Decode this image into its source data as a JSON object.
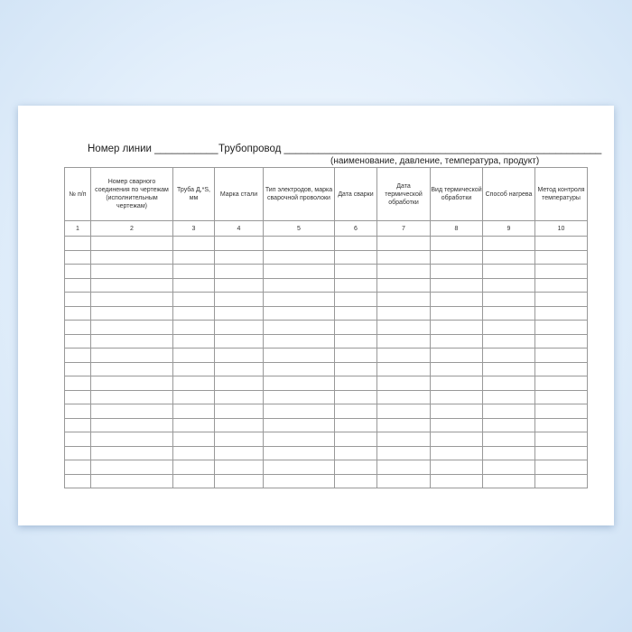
{
  "form": {
    "line_label": "Номер линии ___________",
    "pipeline_label": "Трубопровод _______________________________________________________",
    "pipeline_hint": "(наименование, давление, температура, продукт)",
    "columns": [
      {
        "header": "№ п/п",
        "number": "1"
      },
      {
        "header": "Номер сварного соединения по чертежам (исполнительным чертежам)",
        "number": "2"
      },
      {
        "header": "Труба Д,*S, мм",
        "number": "3"
      },
      {
        "header": "Марка стали",
        "number": "4"
      },
      {
        "header": "Тип электродов, марка сварочной проволоки",
        "number": "5"
      },
      {
        "header": "Дата сварки",
        "number": "6"
      },
      {
        "header": "Дата термической обработки",
        "number": "7"
      },
      {
        "header": "Вид термической обработки",
        "number": "8"
      },
      {
        "header": "Способ нагрева",
        "number": "9"
      },
      {
        "header": "Метод контроля температуры",
        "number": "10"
      }
    ]
  }
}
